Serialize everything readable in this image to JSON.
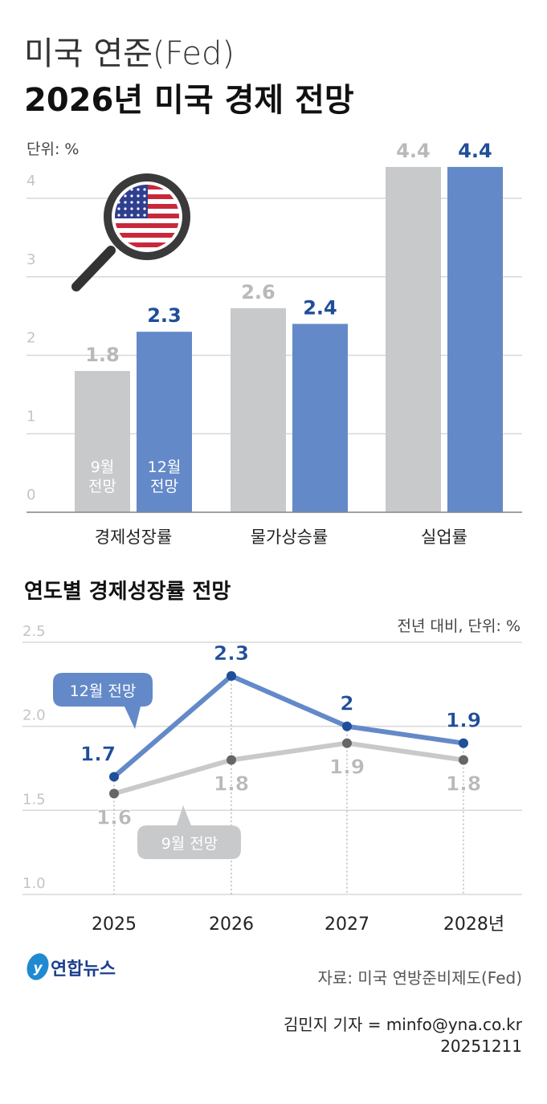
{
  "header": {
    "supertitle": "미국 연준(Fed)",
    "title": "2026년 미국 경제 전망"
  },
  "colors": {
    "sep": "#c8c9cb",
    "dec": "#6389c8",
    "sep_label": "#b8b9bb",
    "dec_label": "#1f4e9a",
    "grid": "#d8d8d8",
    "axis_text": "#c4c4c4"
  },
  "icons": [
    "us-flag-magnifier-icon",
    "yonhap-logo-icon"
  ],
  "chart_data": [
    {
      "type": "bar",
      "unit_label": "단위: %",
      "categories": [
        "경제성장률",
        "물가상승률",
        "실업률"
      ],
      "series": [
        {
          "name": "9월 전망",
          "values": [
            1.8,
            2.6,
            4.4
          ]
        },
        {
          "name": "12월 전망",
          "values": [
            2.3,
            2.4,
            4.4
          ]
        }
      ],
      "series_labels": [
        "9월\n전망",
        "12월\n전망"
      ],
      "yticks": [
        "0",
        "1",
        "2",
        "3",
        "4"
      ],
      "ylim": [
        0,
        4.4
      ],
      "grid": true
    },
    {
      "type": "line",
      "title": "연도별 경제성장률 전망",
      "unit_label": "전년 대비, 단위: %",
      "x": [
        "2025",
        "2026",
        "2027",
        "2028년"
      ],
      "series": [
        {
          "name": "12월 전망",
          "values": [
            1.7,
            2.3,
            2.0,
            1.9
          ]
        },
        {
          "name": "9월 전망",
          "values": [
            1.6,
            1.8,
            1.9,
            1.8
          ]
        }
      ],
      "yticks": [
        "1.0",
        "1.5",
        "2.0",
        "2.5"
      ],
      "ylim": [
        1.0,
        2.5
      ],
      "grid": true
    }
  ],
  "footer": {
    "logo_text": "연합뉴스",
    "source": "자료: 미국 연방준비제도(Fed)",
    "byline": "김민지 기자 = minfo@yna.co.kr",
    "date": "20251211"
  }
}
